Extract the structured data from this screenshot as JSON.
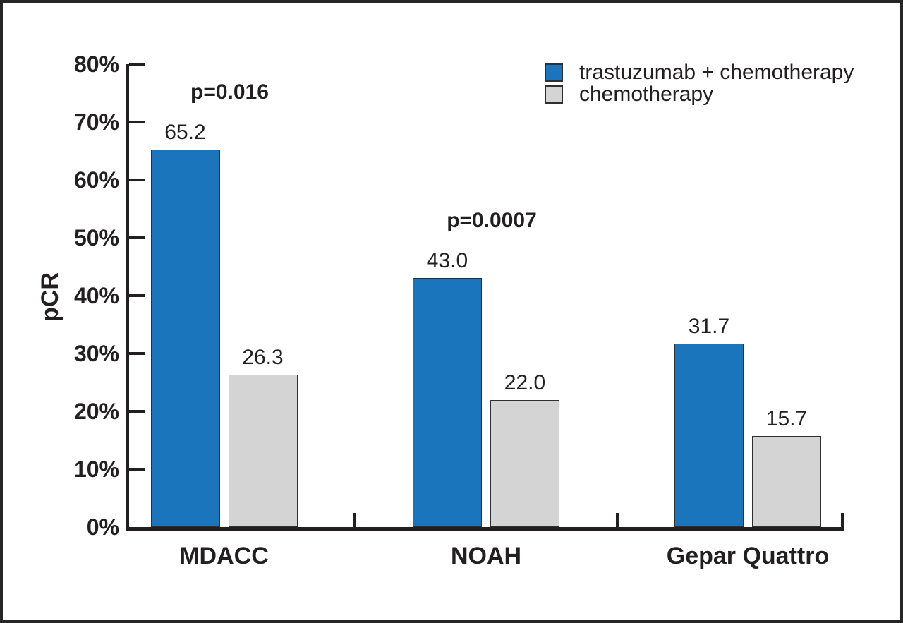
{
  "chart_data": {
    "type": "bar",
    "ylabel": "pCR",
    "xlabel": "",
    "categories": [
      "MDACC",
      "NOAH",
      "Gepar Quattro"
    ],
    "series": [
      {
        "name": "trastuzumab + chemotherapy",
        "color": "#1b75bc",
        "values": [
          65.2,
          43.0,
          31.7
        ],
        "labels": [
          "65.2",
          "43.0",
          "31.7"
        ]
      },
      {
        "name": "chemotherapy",
        "color": "#d4d4d4",
        "values": [
          26.3,
          22.0,
          15.7
        ],
        "labels": [
          "26.3",
          "22.0",
          "15.7"
        ]
      }
    ],
    "annotations": [
      {
        "category": "MDACC",
        "text": "p=0.016"
      },
      {
        "category": "NOAH",
        "text": "p=0.0007"
      }
    ],
    "y_axis": {
      "min": 0,
      "max": 80,
      "step": 10,
      "tick_labels": [
        "0%",
        "10%",
        "20%",
        "30%",
        "40%",
        "50%",
        "60%",
        "70%",
        "80%"
      ]
    },
    "legend": {
      "position": "top-right",
      "entries": [
        {
          "label": "trastuzumab + chemotherapy",
          "color": "#1b75bc"
        },
        {
          "label": "chemotherapy",
          "color": "#d4d4d4"
        }
      ]
    },
    "grid": false
  },
  "colors": {
    "axis": "#231f20",
    "text": "#231f20",
    "bar_border": "#2f2f2f",
    "frame": "#262626",
    "background": "#ffffff"
  }
}
